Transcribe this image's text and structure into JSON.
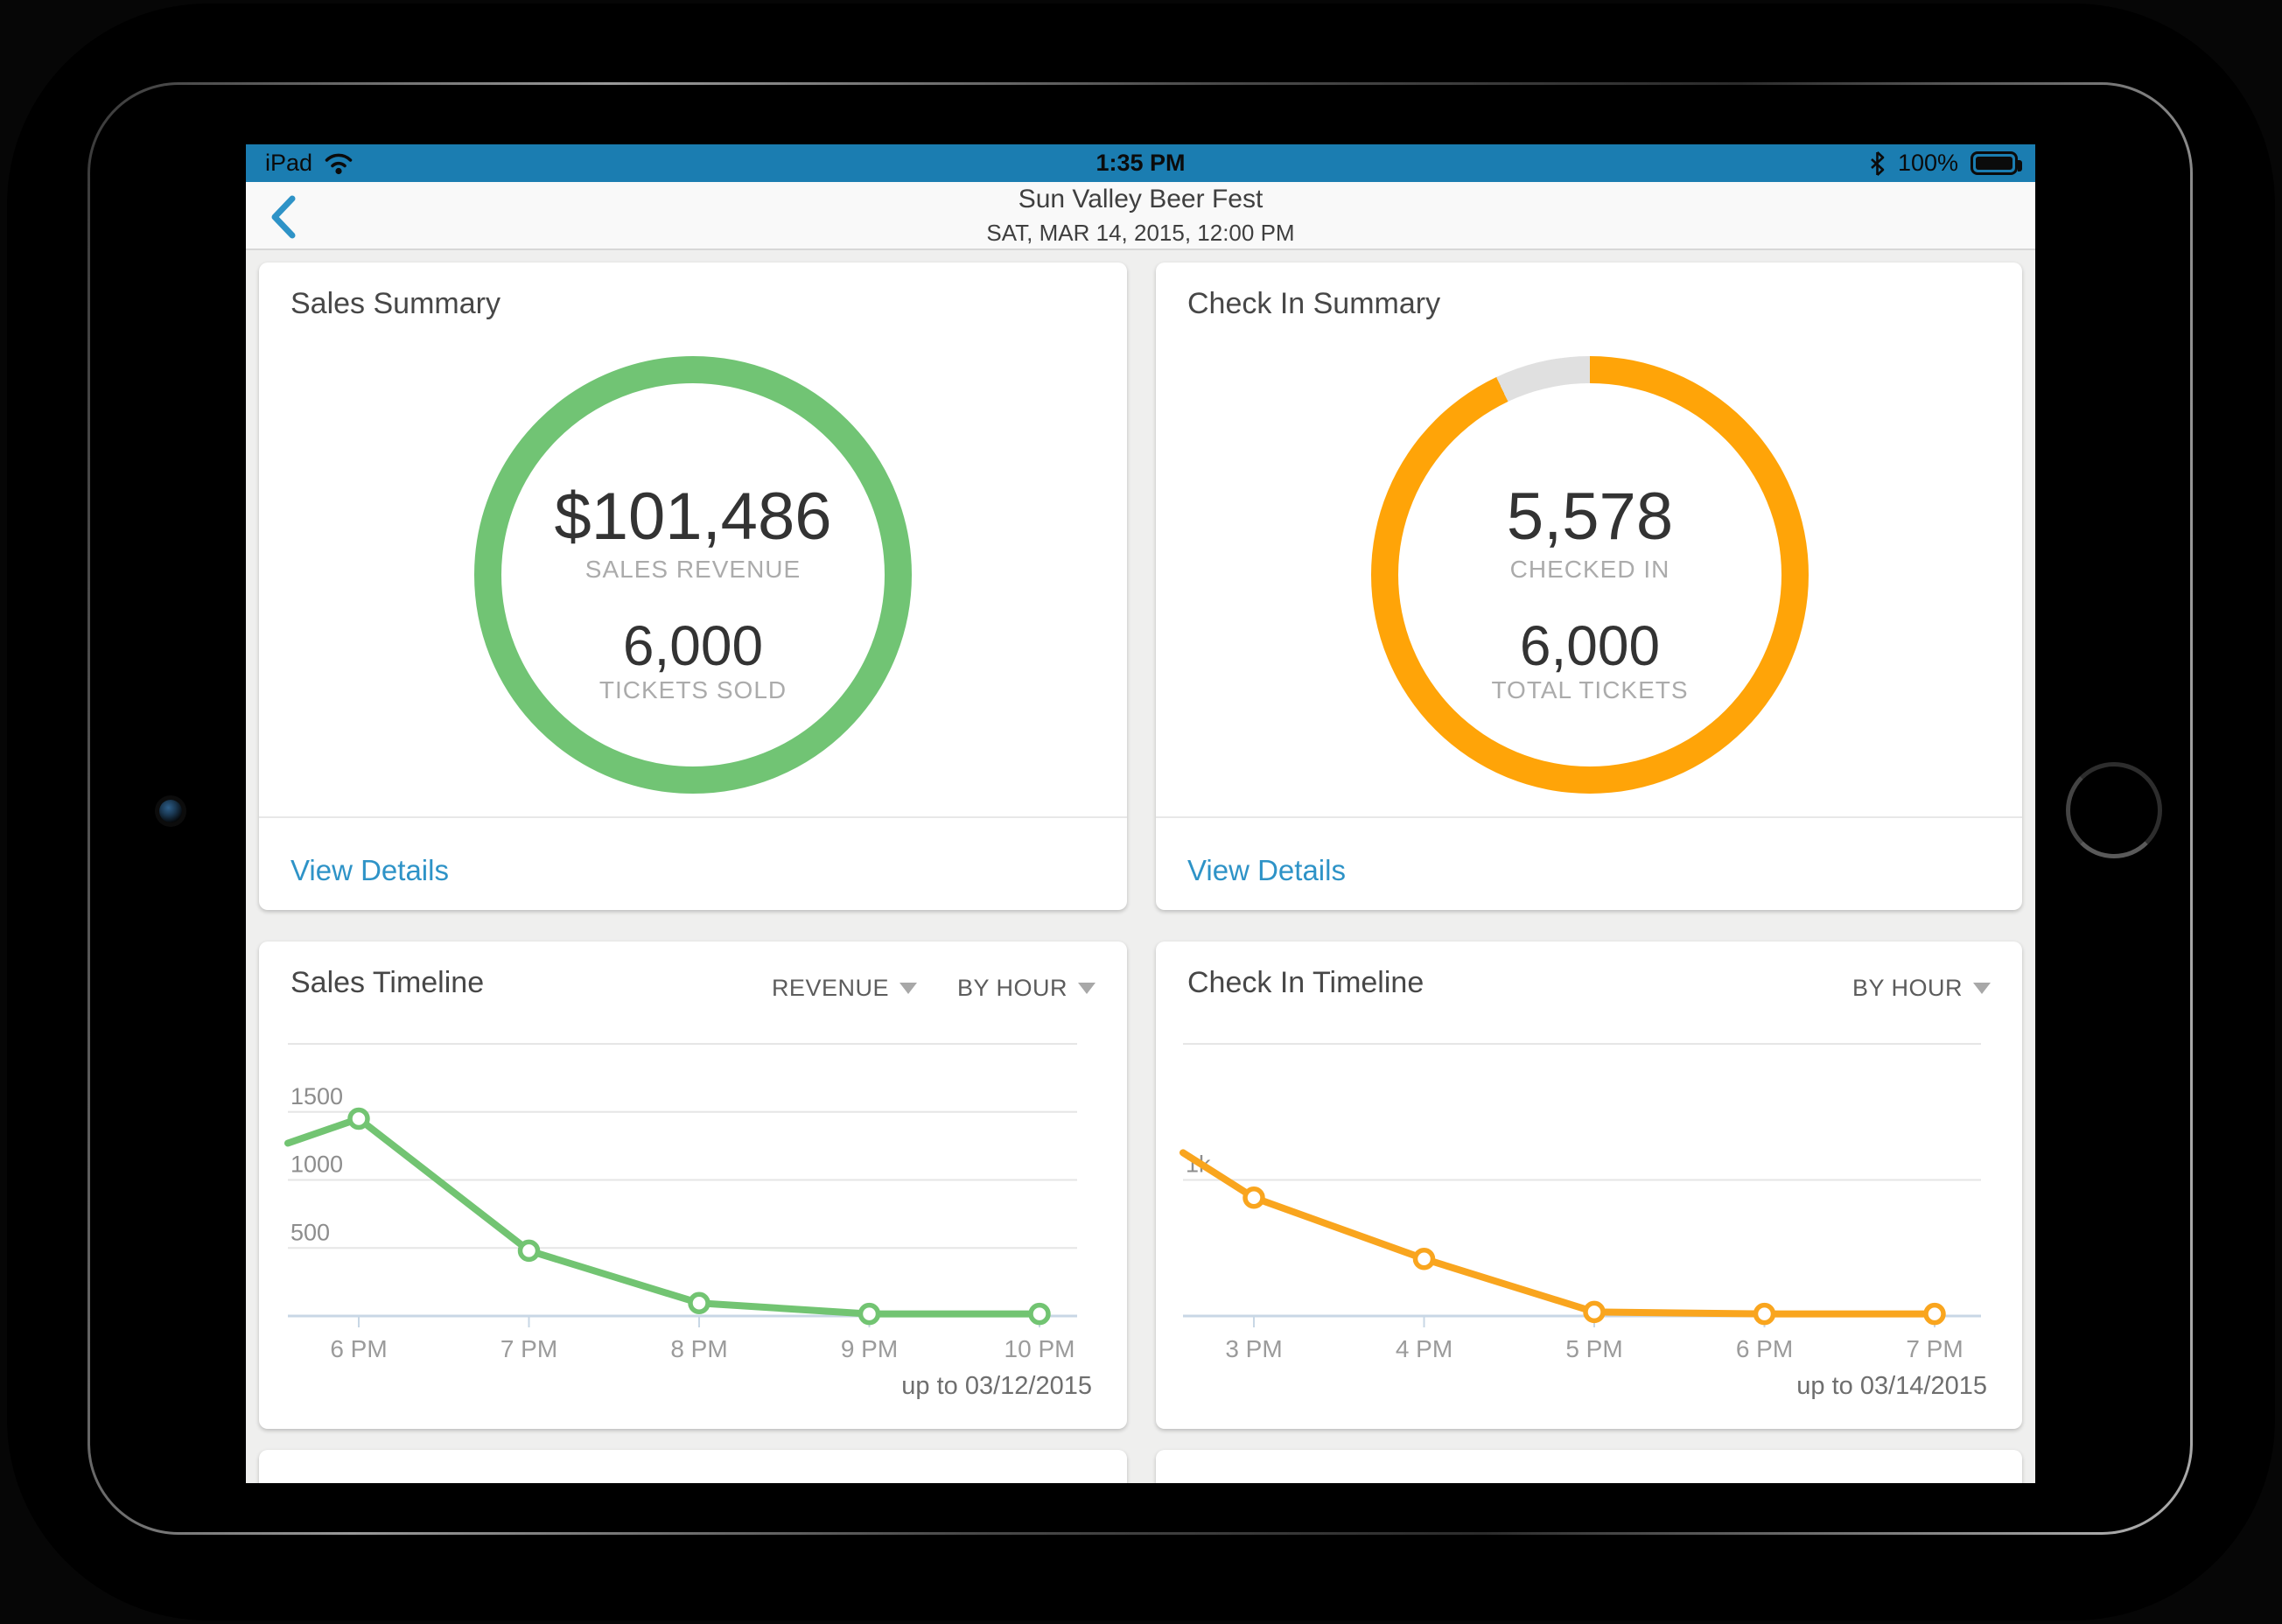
{
  "status_bar": {
    "carrier": "iPad",
    "time": "1:35 PM",
    "battery_percent": "100%"
  },
  "nav": {
    "title": "Sun Valley Beer Fest",
    "subtitle": "SAT, MAR 14, 2015, 12:00 PM"
  },
  "colors": {
    "status_blue": "#1b7db1",
    "accent_blue": "#2e93c7",
    "green": "#71c474",
    "orange_ring": "#ffa408",
    "orange_line": "#f9a51e",
    "ring_remainder_gray": "#e0e0e0"
  },
  "sales_summary": {
    "title": "Sales Summary",
    "primary_value": "$101,486",
    "primary_label": "SALES REVENUE",
    "secondary_value": "6,000",
    "secondary_label": "TICKETS SOLD",
    "link": "View Details"
  },
  "checkin_summary": {
    "title": "Check In Summary",
    "primary_value": "5,578",
    "primary_label": "CHECKED IN",
    "secondary_value": "6,000",
    "secondary_label": "TOTAL TICKETS",
    "link": "View Details",
    "percent_checked_in": 92.97
  },
  "chart_data": [
    {
      "id": "sales-timeline",
      "type": "line",
      "title": "Sales Timeline",
      "filters": [
        "REVENUE",
        "BY HOUR"
      ],
      "x_labels": [
        "6 PM",
        "7 PM",
        "8 PM",
        "9 PM",
        "10 PM"
      ],
      "values": [
        1450,
        480,
        95,
        15,
        15
      ],
      "leading_edge_value": 1270,
      "ylim": [
        0,
        2000
      ],
      "gridlines": [
        {
          "value": 2000,
          "label": ""
        },
        {
          "value": 1500,
          "label": "1500"
        },
        {
          "value": 1000,
          "label": "1000"
        },
        {
          "value": 500,
          "label": "500"
        }
      ],
      "grid": "horizontal",
      "legend": "none",
      "line_color": "#72c472",
      "note": "up to 03/12/2015"
    },
    {
      "id": "checkin-timeline",
      "type": "line",
      "title": "Check In Timeline",
      "filters": [
        "BY HOUR"
      ],
      "x_labels": [
        "3 PM",
        "4 PM",
        "5 PM",
        "6 PM",
        "7 PM"
      ],
      "values": [
        870,
        420,
        30,
        15,
        15
      ],
      "leading_edge_value": 1200,
      "ylim": [
        0,
        2000
      ],
      "gridlines": [
        {
          "value": 2000,
          "label": ""
        },
        {
          "value": 1000,
          "label": "1k"
        }
      ],
      "grid": "horizontal",
      "legend": "none",
      "line_color": "#f9a51e",
      "note": "up to 03/14/2015"
    }
  ]
}
